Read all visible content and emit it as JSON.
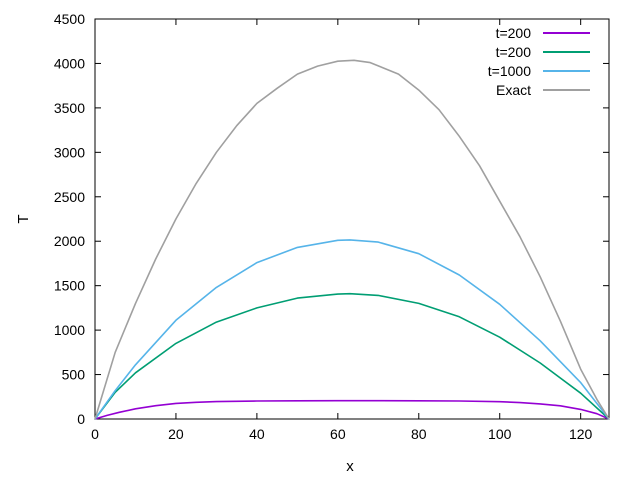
{
  "chart_data": {
    "type": "line",
    "title": "",
    "xlabel": "x",
    "ylabel": "T",
    "xlim": [
      0,
      127
    ],
    "ylim": [
      0,
      4500
    ],
    "xticks": [
      0,
      20,
      40,
      60,
      80,
      100,
      120
    ],
    "yticks": [
      0,
      500,
      1000,
      1500,
      2000,
      2500,
      3000,
      3500,
      4000,
      4500
    ],
    "grid": false,
    "legend_position": "top-right",
    "series": [
      {
        "name": "t=200",
        "color": "#9400d3",
        "x": [
          0,
          3,
          6,
          10,
          15,
          20,
          25,
          30,
          40,
          50,
          60,
          70,
          80,
          90,
          100,
          105,
          110,
          115,
          120,
          124,
          127
        ],
        "y": [
          0,
          40,
          75,
          115,
          150,
          175,
          188,
          196,
          202,
          205,
          206,
          206,
          205,
          202,
          195,
          185,
          170,
          148,
          108,
          60,
          0
        ]
      },
      {
        "name": "t=200",
        "color": "#009e73",
        "x": [
          0,
          5,
          10,
          20,
          30,
          40,
          50,
          60,
          63,
          70,
          80,
          90,
          100,
          110,
          120,
          127
        ],
        "y": [
          0,
          300,
          520,
          850,
          1090,
          1250,
          1360,
          1405,
          1410,
          1390,
          1300,
          1150,
          920,
          630,
          290,
          0
        ]
      },
      {
        "name": "t=1000",
        "color": "#56b4e9",
        "x": [
          0,
          5,
          10,
          20,
          30,
          40,
          50,
          60,
          63,
          70,
          80,
          90,
          100,
          110,
          120,
          127
        ],
        "y": [
          0,
          320,
          610,
          1110,
          1480,
          1760,
          1930,
          2010,
          2015,
          1990,
          1860,
          1620,
          1290,
          880,
          410,
          0
        ]
      },
      {
        "name": "Exact",
        "color": "#a0a0a0",
        "x": [
          0,
          5,
          10,
          15,
          20,
          25,
          30,
          35,
          40,
          45,
          50,
          55,
          60,
          64,
          68,
          75,
          80,
          85,
          90,
          95,
          100,
          105,
          110,
          115,
          120,
          124,
          127
        ],
        "y": [
          0,
          750,
          1300,
          1800,
          2250,
          2650,
          3000,
          3300,
          3550,
          3720,
          3880,
          3970,
          4025,
          4035,
          4010,
          3880,
          3700,
          3480,
          3180,
          2850,
          2450,
          2050,
          1600,
          1100,
          560,
          220,
          0
        ]
      }
    ]
  }
}
